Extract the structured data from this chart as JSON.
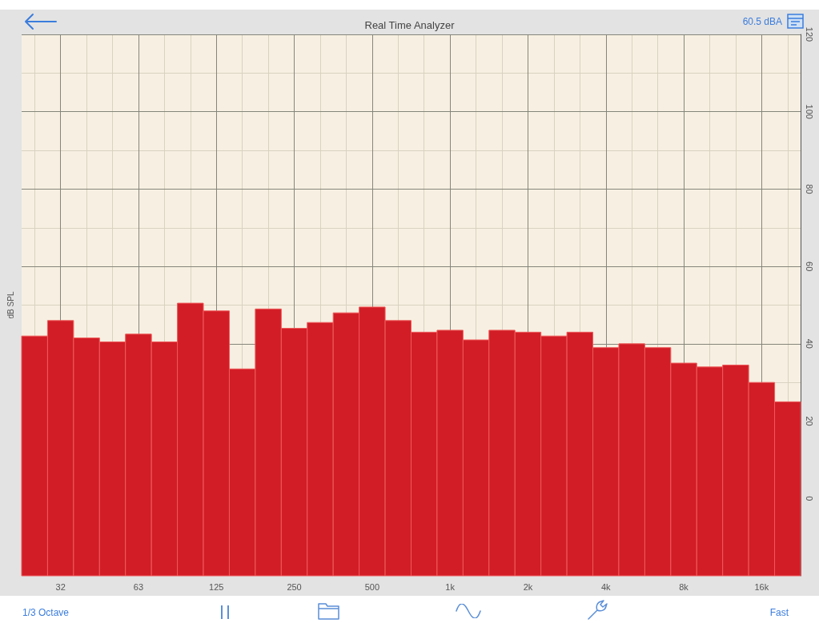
{
  "chart_data": {
    "type": "bar",
    "title": "Real Time Analyzer",
    "ylabel": "dB SPL",
    "annotations": [
      "60.5 dBA",
      "1/3 Octave",
      "Fast"
    ],
    "categories": [
      null,
      "32",
      null,
      null,
      "63",
      null,
      null,
      "125",
      null,
      null,
      "250",
      null,
      null,
      "500",
      null,
      null,
      "1k",
      null,
      null,
      "2k",
      null,
      null,
      "4k",
      null,
      null,
      "8k",
      null,
      null,
      "16k",
      null
    ],
    "base": [
      -20,
      -20,
      -20,
      -20,
      -20,
      -20,
      -20,
      -20,
      -20,
      -20,
      -20,
      -20,
      -20,
      -20,
      -20,
      -20,
      -20,
      -20,
      -20,
      -20,
      -20,
      -20,
      -20,
      -20,
      -20,
      -20,
      -20,
      -20,
      -20,
      -20
    ],
    "values": [
      62,
      66,
      61.5,
      60.5,
      62.5,
      60.5,
      70.5,
      68.5,
      53.5,
      69,
      64,
      65.5,
      68,
      69.5,
      66,
      63,
      63.5,
      61,
      63.5,
      63,
      62,
      63,
      59,
      60,
      59,
      55,
      54,
      54.5,
      50,
      45
    ],
    "color": "#d21d26",
    "ylim": [
      -20,
      120
    ],
    "yticks": [
      0,
      20,
      40,
      60,
      80,
      100,
      120
    ],
    "grid": true
  }
}
